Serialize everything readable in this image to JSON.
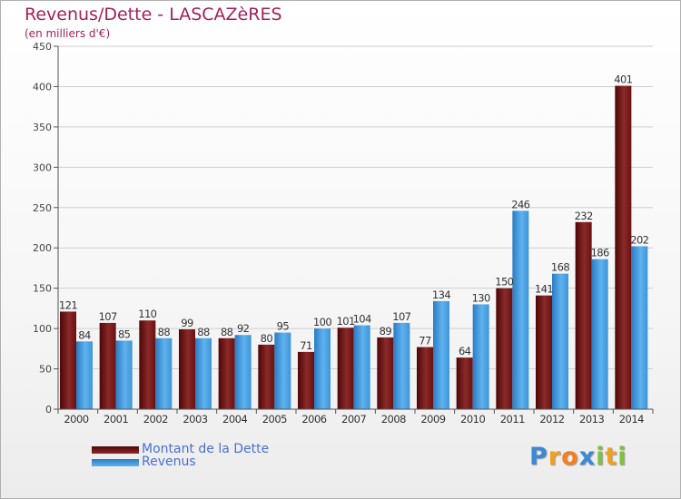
{
  "title": "Revenus/Dette - LASCAZèRES",
  "subtitle": "(en milliers d'€)",
  "chart_data": {
    "type": "bar",
    "categories": [
      "2000",
      "2001",
      "2002",
      "2003",
      "2004",
      "2005",
      "2006",
      "2007",
      "2008",
      "2009",
      "2010",
      "2011",
      "2012",
      "2013",
      "2014"
    ],
    "series": [
      {
        "name": "Montant de la Dette",
        "values": [
          121,
          107,
          110,
          99,
          88,
          80,
          71,
          101,
          89,
          77,
          64,
          150,
          141,
          232,
          401
        ],
        "color": "#7a1a1a"
      },
      {
        "name": "Revenus",
        "values": [
          84,
          85,
          88,
          88,
          92,
          95,
          100,
          104,
          107,
          134,
          130,
          246,
          168,
          186,
          202
        ],
        "color": "#3b9ae1"
      }
    ],
    "ylim": [
      0,
      450
    ],
    "yticks": [
      0,
      50,
      100,
      150,
      200,
      250,
      300,
      350,
      400,
      450
    ],
    "grid": true,
    "legend_position": "bottom-left"
  },
  "legend": {
    "items": [
      {
        "label": "Montant de la Dette",
        "color": "#7a1a1a"
      },
      {
        "label": "Revenus",
        "color": "#3b9ae1"
      }
    ]
  },
  "logo": {
    "letters": [
      "P",
      "r",
      "o",
      "x",
      "i",
      "t",
      "i"
    ],
    "colors": [
      "#3a8ad4",
      "#f0a020",
      "#f08020",
      "#3a8ad4",
      "#80c040",
      "#f0a020",
      "#80c040"
    ]
  }
}
